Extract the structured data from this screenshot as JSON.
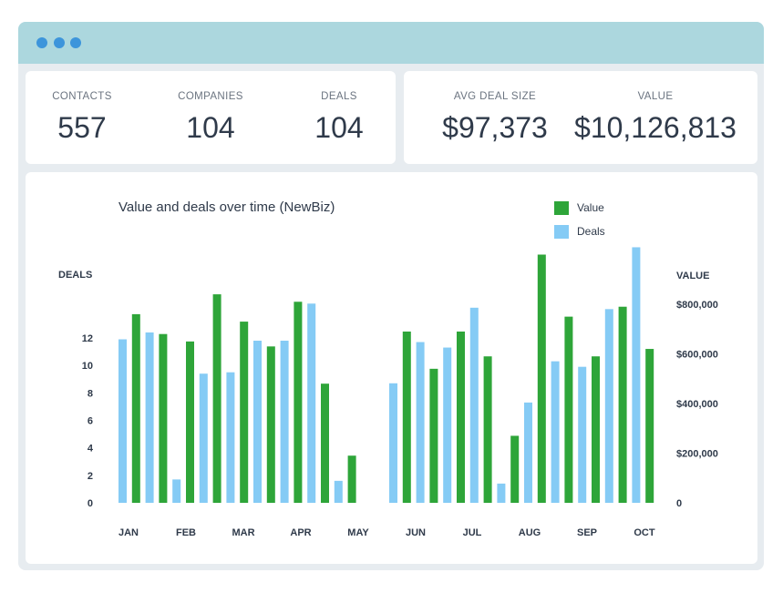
{
  "window": {
    "titlebar_color": "#acd7de",
    "dot_color": "#3d95db"
  },
  "stats_left": [
    {
      "label": "CONTACTS",
      "value": "557"
    },
    {
      "label": "COMPANIES",
      "value": "104"
    },
    {
      "label": "DEALS",
      "value": "104"
    }
  ],
  "stats_right": [
    {
      "label": "AVG DEAL SIZE",
      "value": "$97,373"
    },
    {
      "label": "VALUE",
      "value": "$10,126,813"
    }
  ],
  "chart_data": {
    "type": "bar",
    "title": "Value and deals over time (NewBiz)",
    "legend": [
      {
        "name": "Value",
        "color": "#2ea539"
      },
      {
        "name": "Deals",
        "color": "#85cbf5"
      }
    ],
    "legend_placement": "top-right",
    "ylabel_left": "DEALS",
    "ylabel_right": "VALUE",
    "left_ticks": [
      "0",
      "2",
      "4",
      "6",
      "8",
      "10",
      "12"
    ],
    "right_ticks": [
      "0",
      "$200,000",
      "$400,000",
      "$600,000",
      "$800,000"
    ],
    "x_labels": [
      "JAN",
      "FEB",
      "MAR",
      "APR",
      "MAY",
      "JUN",
      "JUL",
      "AUG",
      "SEP",
      "OCT"
    ],
    "ylim_deals": [
      0,
      12
    ],
    "ylim_value": [
      0,
      800000
    ],
    "bars": [
      {
        "s": "Deals",
        "v": 11.9,
        "m": "JAN"
      },
      {
        "s": "Value",
        "v": 760000,
        "m": "JAN"
      },
      {
        "s": "Deals",
        "v": 12.4,
        "m": "JAN"
      },
      {
        "s": "Value",
        "v": 680000,
        "m": "JAN"
      },
      {
        "s": "Deals",
        "v": 1.7,
        "m": "FEB"
      },
      {
        "s": "Value",
        "v": 650000,
        "m": "FEB"
      },
      {
        "s": "Deals",
        "v": 9.4,
        "m": "FEB"
      },
      {
        "s": "Value",
        "v": 840000,
        "m": "FEB"
      },
      {
        "s": "Deals",
        "v": 9.5,
        "m": "MAR"
      },
      {
        "s": "Value",
        "v": 730000,
        "m": "MAR"
      },
      {
        "s": "Deals",
        "v": 11.8,
        "m": "MAR"
      },
      {
        "s": "Value",
        "v": 630000,
        "m": "MAR"
      },
      {
        "s": "Deals",
        "v": 11.8,
        "m": "APR"
      },
      {
        "s": "Value",
        "v": 810000,
        "m": "APR"
      },
      {
        "s": "Deals",
        "v": 14.5,
        "m": "APR"
      },
      {
        "s": "Value",
        "v": 480000,
        "m": "APR"
      },
      {
        "s": "Deals",
        "v": 1.6,
        "m": "MAY"
      },
      {
        "s": "Value",
        "v": 190000,
        "m": "MAY"
      },
      {
        "s": "Deals",
        "v": 8.7,
        "m": "JUN"
      },
      {
        "s": "Value",
        "v": 690000,
        "m": "JUN"
      },
      {
        "s": "Deals",
        "v": 11.7,
        "m": "JUN"
      },
      {
        "s": "Value",
        "v": 540000,
        "m": "JUN"
      },
      {
        "s": "Deals",
        "v": 11.3,
        "m": "JUL"
      },
      {
        "s": "Value",
        "v": 690000,
        "m": "JUL"
      },
      {
        "s": "Deals",
        "v": 14.2,
        "m": "JUL"
      },
      {
        "s": "Value",
        "v": 590000,
        "m": "JUL"
      },
      {
        "s": "Deals",
        "v": 1.4,
        "m": "AUG"
      },
      {
        "s": "Value",
        "v": 270000,
        "m": "AUG"
      },
      {
        "s": "Deals",
        "v": 7.3,
        "m": "AUG"
      },
      {
        "s": "Value",
        "v": 1000000,
        "m": "AUG"
      },
      {
        "s": "Deals",
        "v": 10.3,
        "m": "SEP"
      },
      {
        "s": "Value",
        "v": 750000,
        "m": "SEP"
      },
      {
        "s": "Deals",
        "v": 9.9,
        "m": "SEP"
      },
      {
        "s": "Value",
        "v": 590000,
        "m": "SEP"
      },
      {
        "s": "Deals",
        "v": 14.1,
        "m": "OCT"
      },
      {
        "s": "Value",
        "v": 790000,
        "m": "OCT"
      },
      {
        "s": "Deals",
        "v": 18.6,
        "m": "OCT"
      },
      {
        "s": "Value",
        "v": 620000,
        "m": "OCT"
      }
    ]
  }
}
